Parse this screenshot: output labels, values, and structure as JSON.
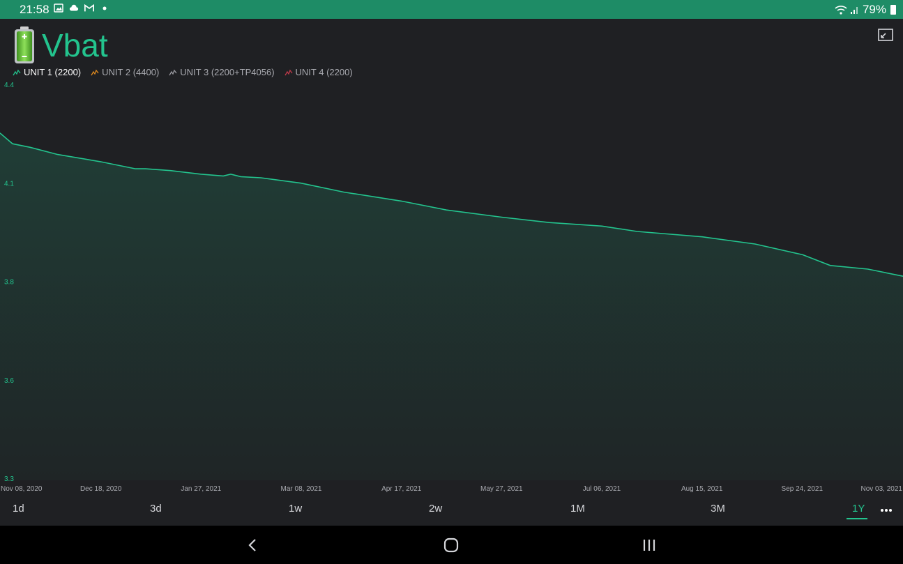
{
  "status_bar": {
    "time": "21:58",
    "battery_percent": "79%",
    "icons": [
      "image-icon",
      "cloud-icon",
      "gmail-icon",
      "dot-icon",
      "wifi-icon",
      "signal-icon",
      "battery-icon"
    ]
  },
  "widget": {
    "title": "Vbat",
    "title_icon": "battery-icon",
    "accent_color": "#23c48e"
  },
  "legend": [
    {
      "label": "UNIT 1 (2200)",
      "color": "#23c48e",
      "active": true
    },
    {
      "label": "UNIT 2 (4400)",
      "color": "#e08a1e",
      "active": false
    },
    {
      "label": "UNIT 3 (2200+TP4056)",
      "color": "#9a9aa0",
      "active": false
    },
    {
      "label": "UNIT 4 (2200)",
      "color": "#c23a4a",
      "active": false
    }
  ],
  "chart_data": {
    "type": "area",
    "y_ticks": [
      "4.4",
      "4.1",
      "3.8",
      "3.6",
      "3.3"
    ],
    "ylim": [
      3.3,
      4.4
    ],
    "x_ticks": [
      "Nov 08, 2020",
      "Dec 18, 2020",
      "Jan 27, 2021",
      "Mar 08, 2021",
      "Apr 17, 2021",
      "May 27, 2021",
      "Jul 06, 2021",
      "Aug 15, 2021",
      "Sep 24, 2021",
      "Nov 03, 2021"
    ],
    "x": [
      "Nov 08, 2020",
      "Nov 13, 2020",
      "Nov 20, 2020",
      "Dec 01, 2020",
      "Dec 18, 2020",
      "Jan 01, 2021",
      "Jan 05, 2021",
      "Jan 15, 2021",
      "Jan 27, 2021",
      "Feb 05, 2021",
      "Feb 08, 2021",
      "Feb 12, 2021",
      "Feb 20, 2021",
      "Mar 08, 2021",
      "Mar 25, 2021",
      "Apr 17, 2021",
      "May 05, 2021",
      "May 27, 2021",
      "Jun 15, 2021",
      "Jul 06, 2021",
      "Jul 20, 2021",
      "Aug 15, 2021",
      "Sep 05, 2021",
      "Sep 24, 2021",
      "Oct 05, 2021",
      "Oct 20, 2021",
      "Nov 03, 2021"
    ],
    "series": [
      {
        "name": "UNIT 1 (2200)",
        "values": [
          4.27,
          4.24,
          4.23,
          4.21,
          4.19,
          4.17,
          4.17,
          4.165,
          4.155,
          4.15,
          4.155,
          4.148,
          4.145,
          4.13,
          4.105,
          4.08,
          4.055,
          4.035,
          4.02,
          4.01,
          3.995,
          3.98,
          3.96,
          3.93,
          3.9,
          3.89,
          3.87
        ]
      }
    ],
    "grid": false,
    "legend_position": "top-left"
  },
  "time_ranges": {
    "options": [
      "1d",
      "3d",
      "1w",
      "2w",
      "1M",
      "3M",
      "1Y"
    ],
    "selected": "1Y",
    "more_icon": "more-icon"
  },
  "nav_bar": {
    "icons": [
      "back-icon",
      "home-icon",
      "recents-icon"
    ]
  }
}
